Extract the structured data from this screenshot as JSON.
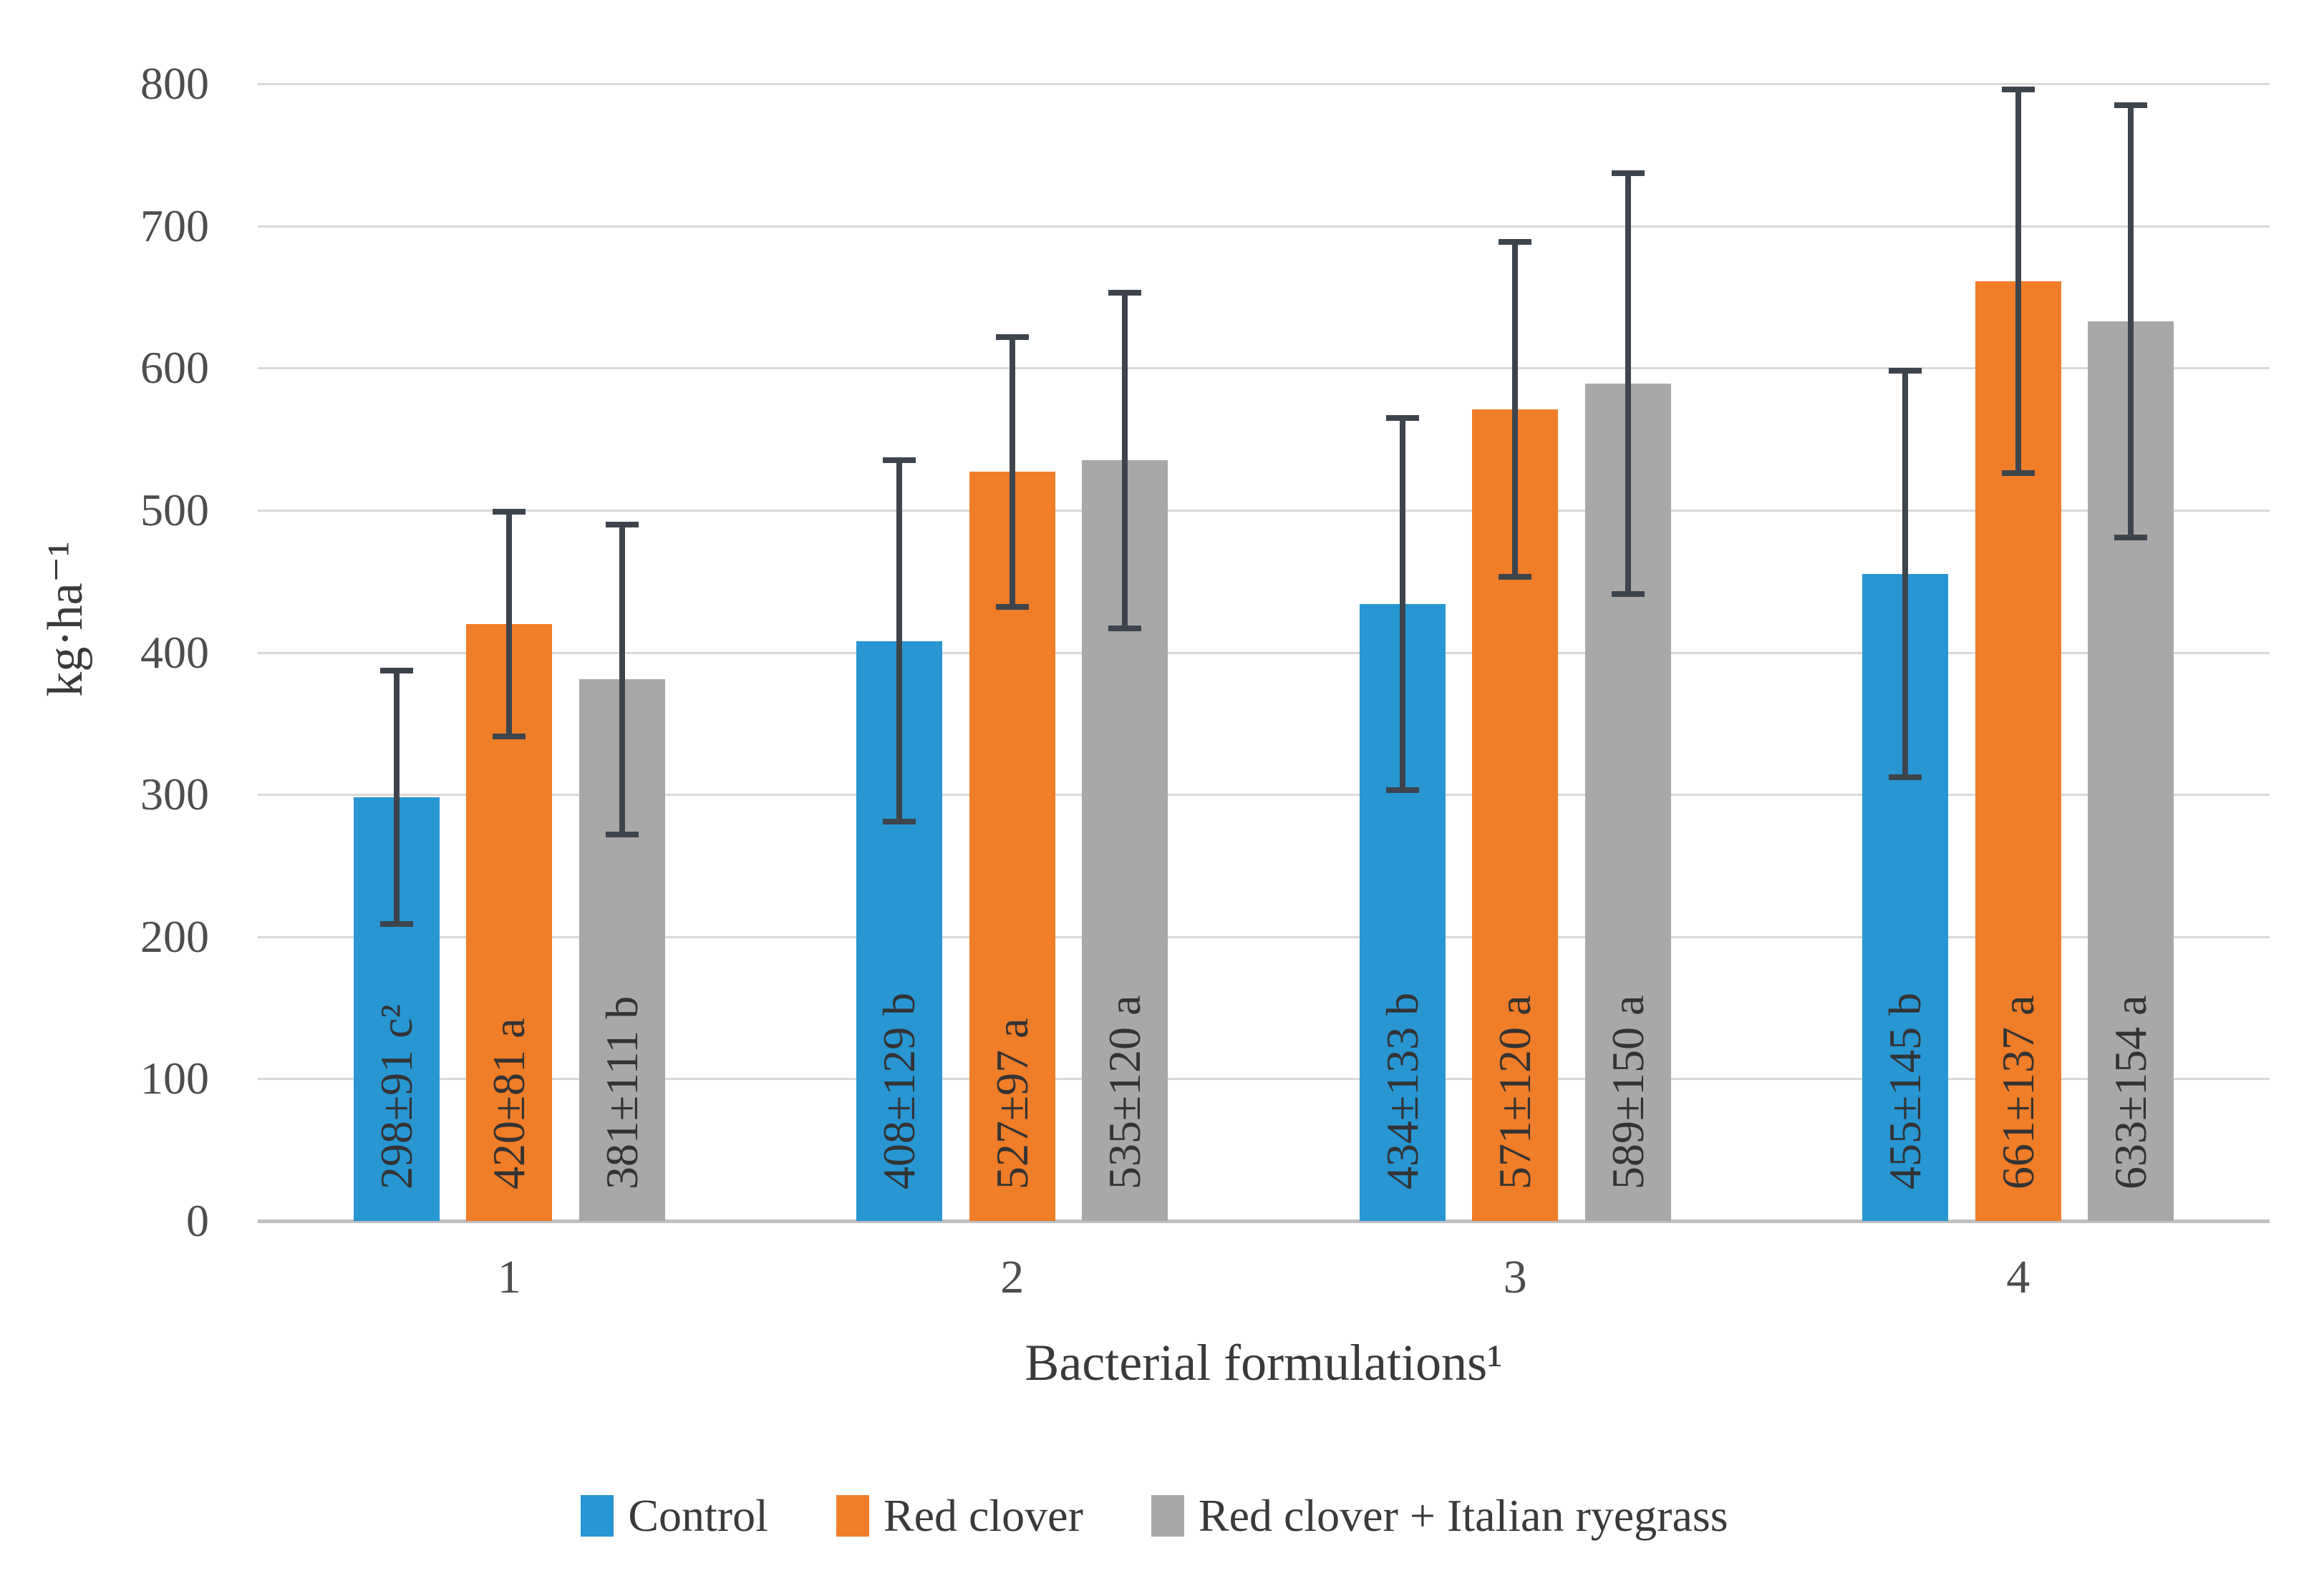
{
  "chart_data": {
    "type": "bar",
    "title": "",
    "xlabel": "Bacterial formulations¹",
    "ylabel": "kg·ha⁻¹",
    "ylim": [
      0,
      800
    ],
    "yticks": [
      0,
      100,
      200,
      300,
      400,
      500,
      600,
      700,
      800
    ],
    "grid": true,
    "legend_position": "bottom",
    "categories": [
      "1",
      "2",
      "3",
      "4"
    ],
    "series": [
      {
        "name": "Control",
        "color": "#2796D3",
        "values": [
          298,
          408,
          434,
          455
        ],
        "errors": [
          91,
          129,
          133,
          145
        ],
        "bar_labels": [
          "298±91 c²",
          "408±129 b",
          "434±133 b",
          "455±145 b"
        ]
      },
      {
        "name": "Red clover",
        "color": "#F07D28",
        "values": [
          420,
          527,
          571,
          661
        ],
        "errors": [
          81,
          97,
          120,
          137
        ],
        "bar_labels": [
          "420±81 a",
          "527±97 a",
          "571±120 a",
          "661±137 a"
        ]
      },
      {
        "name": "Red clover + Italian ryegrass",
        "color": "#A8A8A8",
        "values": [
          381,
          535,
          589,
          633
        ],
        "errors": [
          111,
          120,
          150,
          154
        ],
        "bar_labels": [
          "381±111 b",
          "535±120 a",
          "589±150 a",
          "633±154 a"
        ]
      }
    ],
    "colors": {
      "gridline": "#D9D9D9",
      "axis_line": "#BFBFBF",
      "error_bar": "#3D444C",
      "tick_text": "#4D4D4D",
      "bar_label_text": "#333333",
      "axis_title_text": "#3A3A3A",
      "legend_text": "#3A3A3A"
    }
  }
}
